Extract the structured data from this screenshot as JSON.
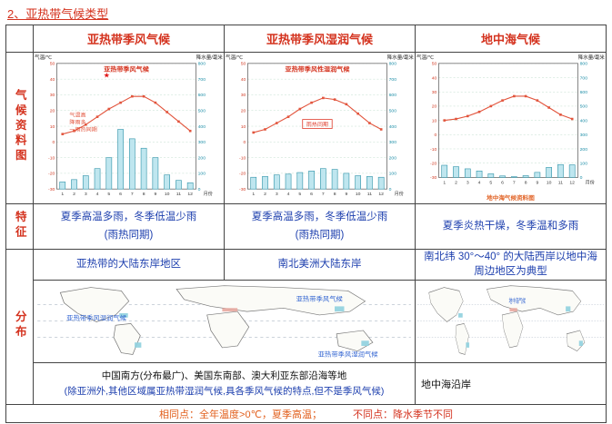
{
  "page_title": "2、亚热带气候类型",
  "table": {
    "headers": [
      "亚热带季风气候",
      "亚热带季风湿润气候",
      "地中海气候"
    ],
    "row_labels": {
      "charts": "气候资料图",
      "features": "特征",
      "distribution": "分布"
    }
  },
  "features": {
    "monsoon": {
      "line1": "夏季高温多雨，冬季低温少雨",
      "line2": "(雨热同期)"
    },
    "humid": {
      "line1": "夏季高温多雨，冬季低温少雨",
      "line2": "(雨热同期)"
    },
    "mediterranean": "夏季炎热干燥，冬季温和多雨"
  },
  "distribution": {
    "monsoon_region": "亚热带的大陆东岸地区",
    "humid_region": "南北美洲大陆东岸",
    "mediterranean_region": "南北纬 30°～40° 的大陆西岸以地中海周边地区为典型",
    "east_text_line1": "中国南方(分布最广)、美国东南部、澳大利亚东部沿海等地",
    "east_text_line2": "(除亚洲外,其他区域属亚热带湿润气候,具各季风气候的特点,但不是季风气候)",
    "mediterranean_text": "地中海沿岸"
  },
  "footer": {
    "same": "相同点：全年温度>0℃，夏季高温；",
    "diff": "不同点：降水季节不同"
  },
  "maps": {
    "world": {
      "labels": [
        "亚热带季风气候",
        "亚热带季风湿润气候",
        "亚热带季风湿润气候"
      ]
    },
    "mediterranean": {
      "labels": [
        "地中海气候"
      ]
    }
  },
  "chart_data": [
    {
      "type": "line+bar climate graph",
      "title": "亚热带季风气候",
      "left_axis": "气温/℃",
      "right_axis": "降水量/毫米",
      "x_unit": "月份",
      "months": [
        1,
        2,
        3,
        4,
        5,
        6,
        7,
        8,
        9,
        10,
        11,
        12
      ],
      "temp_axis_range": [
        -30,
        50
      ],
      "precip_axis_range": [
        0,
        800
      ],
      "temp_c": [
        5,
        7,
        11,
        16,
        21,
        25,
        29,
        29,
        25,
        19,
        13,
        7
      ],
      "precip_mm": [
        45,
        60,
        85,
        130,
        200,
        380,
        320,
        260,
        200,
        90,
        55,
        40
      ],
      "annotations": [
        "气温高",
        "降雨多",
        "一雨热同期"
      ],
      "star": true
    },
    {
      "type": "line+bar climate graph",
      "title": "亚热带季风性湿润气候",
      "left_axis": "气温/℃",
      "right_axis": "降水量/毫米",
      "x_unit": "月份",
      "months": [
        1,
        2,
        3,
        4,
        5,
        6,
        7,
        8,
        9,
        10,
        11,
        12
      ],
      "temp_axis_range": [
        -30,
        50
      ],
      "precip_axis_range": [
        0,
        800
      ],
      "temp_c": [
        6,
        8,
        12,
        16,
        21,
        25,
        28,
        27,
        24,
        18,
        12,
        8
      ],
      "precip_mm": [
        75,
        80,
        90,
        95,
        105,
        115,
        130,
        125,
        100,
        85,
        80,
        75
      ],
      "boxed_annotation": "雨热同期"
    },
    {
      "type": "line+bar climate graph",
      "title": "",
      "subtitle": "地中海气候资料图",
      "left_axis": "气温/℃",
      "right_axis": "降水量/毫米",
      "x_unit": "月份",
      "months": [
        1,
        2,
        3,
        4,
        5,
        6,
        7,
        8,
        9,
        10,
        11,
        12
      ],
      "temp_axis_range": [
        -30,
        50
      ],
      "precip_axis_range": [
        0,
        800
      ],
      "temp_c": [
        10,
        11,
        13,
        16,
        20,
        24,
        27,
        27,
        24,
        19,
        14,
        11
      ],
      "precip_mm": [
        85,
        75,
        60,
        45,
        25,
        10,
        5,
        12,
        35,
        70,
        90,
        88
      ]
    }
  ]
}
